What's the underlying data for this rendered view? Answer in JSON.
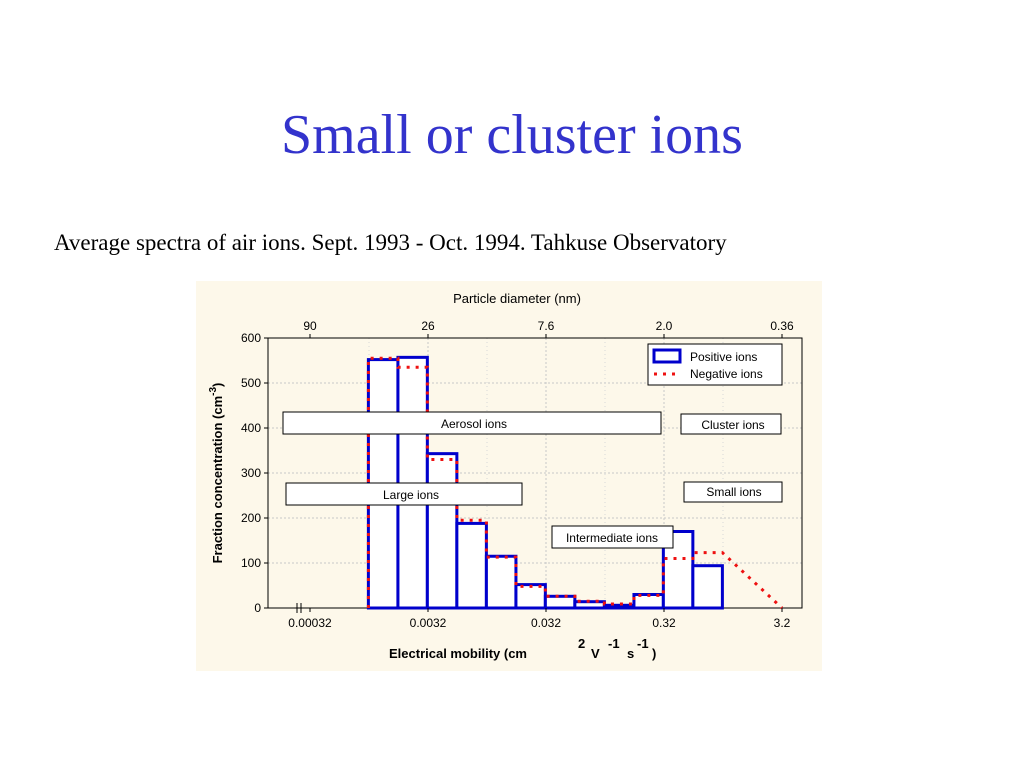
{
  "slide": {
    "title": "Small or cluster ions",
    "subtitle": "Average spectra of air ions. Sept. 1993 - Oct. 1994. Tahkuse Observatory"
  },
  "colors": {
    "title": "#3333cc",
    "chart_background": "#fdf8ea",
    "positive_series": "#0000cc",
    "negative_series": "#ee1111"
  },
  "chart_data": {
    "type": "bar",
    "x_scale": "log",
    "xlabel": "Electrical  mobility  (cm",
    "xlabel_unit_parts": [
      "2",
      "V",
      "-1",
      "s",
      "-1",
      ")"
    ],
    "ylabel": "Fraction concentration  (cm",
    "ylabel_exponent": "-3",
    "ylabel_close": ")",
    "top_axis_label": "Particle diameter  (nm)",
    "ylim": [
      0,
      600
    ],
    "y_ticks": [
      "600",
      "500",
      "400",
      "300",
      "200",
      "100",
      "0"
    ],
    "x_ticks": [
      "0.00032",
      "0.0032",
      "0.032",
      "0.32",
      "3.2"
    ],
    "x_tick_values": [
      0.00032,
      0.0032,
      0.032,
      0.32,
      3.2
    ],
    "top_ticks": [
      "90",
      "26",
      "7.6",
      "2.0",
      "0.36"
    ],
    "bin_edges": [
      0.00032,
      0.000566,
      0.001,
      0.00178,
      0.00316,
      0.00562,
      0.01,
      0.0178,
      0.0316,
      0.0562,
      0.1,
      0.178,
      0.316,
      0.562,
      1.0,
      1.78,
      3.2
    ],
    "series": [
      {
        "name": "Positive ions",
        "style": "solid",
        "values": [
          0,
          0,
          552,
          557,
          343,
          188,
          115,
          52,
          26,
          14,
          6,
          30,
          170,
          94
        ]
      },
      {
        "name": "Negative ions",
        "style": "dotted",
        "values": [
          0,
          0,
          555,
          535,
          330,
          195,
          113,
          48,
          26,
          15,
          9,
          28,
          110,
          123
        ]
      }
    ],
    "legend_position": "top-right",
    "grid": true,
    "annotations": [
      "Aerosol  ions",
      "Cluster ions",
      "Large  ions",
      "Small ions",
      "Intermediate ions"
    ]
  }
}
